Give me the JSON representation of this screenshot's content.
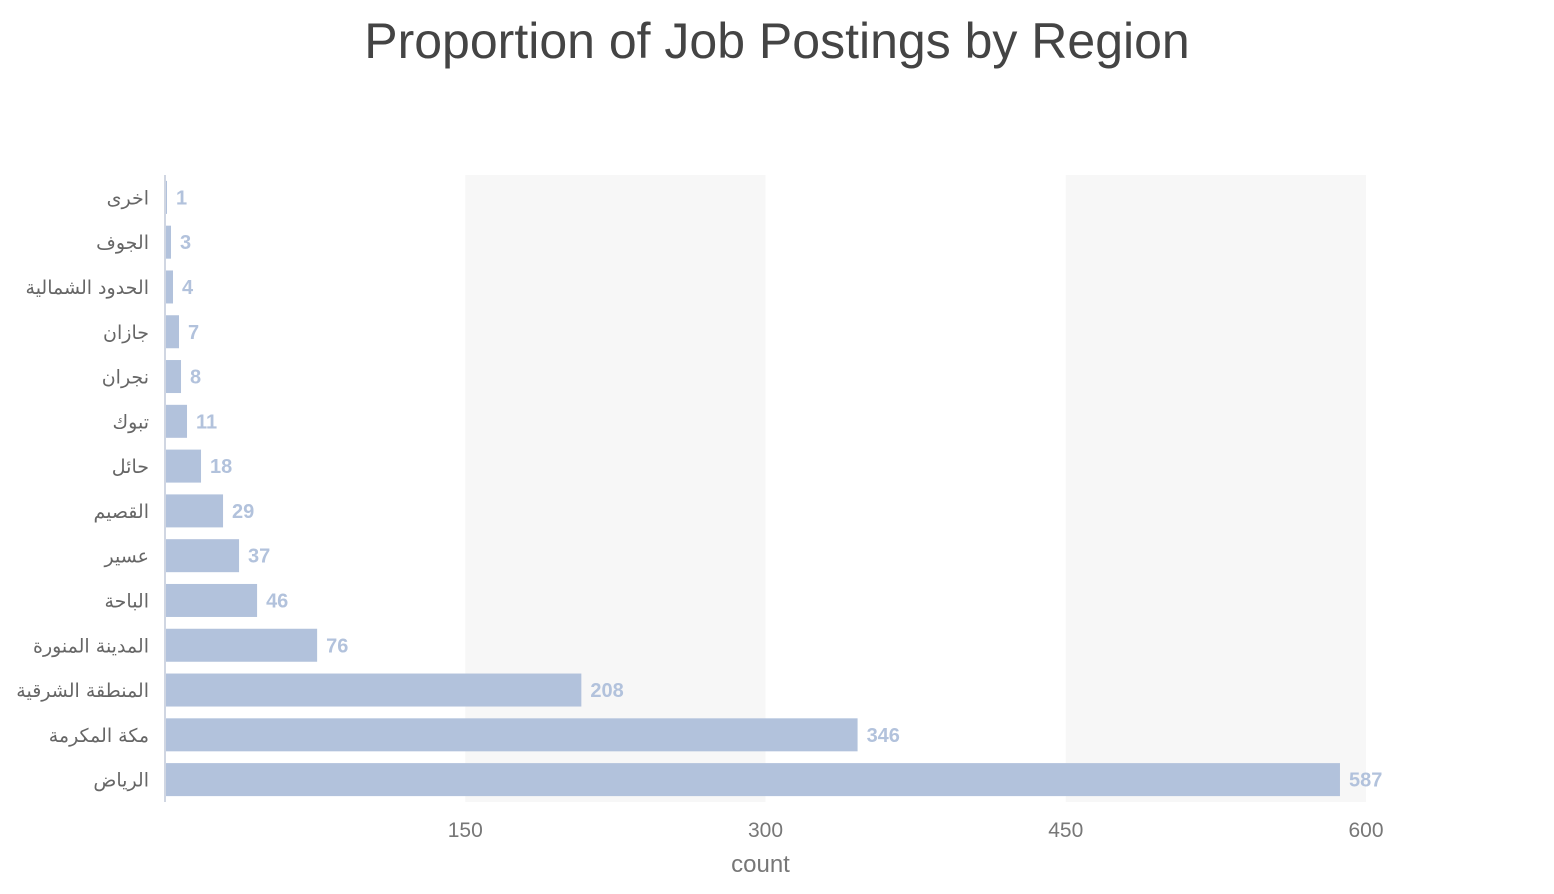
{
  "chart_data": {
    "type": "bar",
    "orientation": "horizontal",
    "title": "Proportion of Job Postings by Region",
    "xlabel": "count",
    "ylabel": "",
    "xlim": [
      0,
      600
    ],
    "xticks": [
      150,
      300,
      450,
      600
    ],
    "grid": "alternating bands",
    "categories": [
      "اخرى",
      "الجوف",
      "الحدود الشمالية",
      "جازان",
      "نجران",
      "تبوك",
      "حائل",
      "القصيم",
      "عسير",
      "الباحة",
      "المدينة المنورة",
      "المنطقة الشرقية",
      "مكة المكرمة",
      "الرياض"
    ],
    "values": [
      1,
      3,
      4,
      7,
      8,
      11,
      18,
      29,
      37,
      46,
      76,
      208,
      346,
      587
    ],
    "bar_color": "#b2c2dc",
    "label_color": "#b2c2dc",
    "band_color": "#f7f7f7"
  }
}
